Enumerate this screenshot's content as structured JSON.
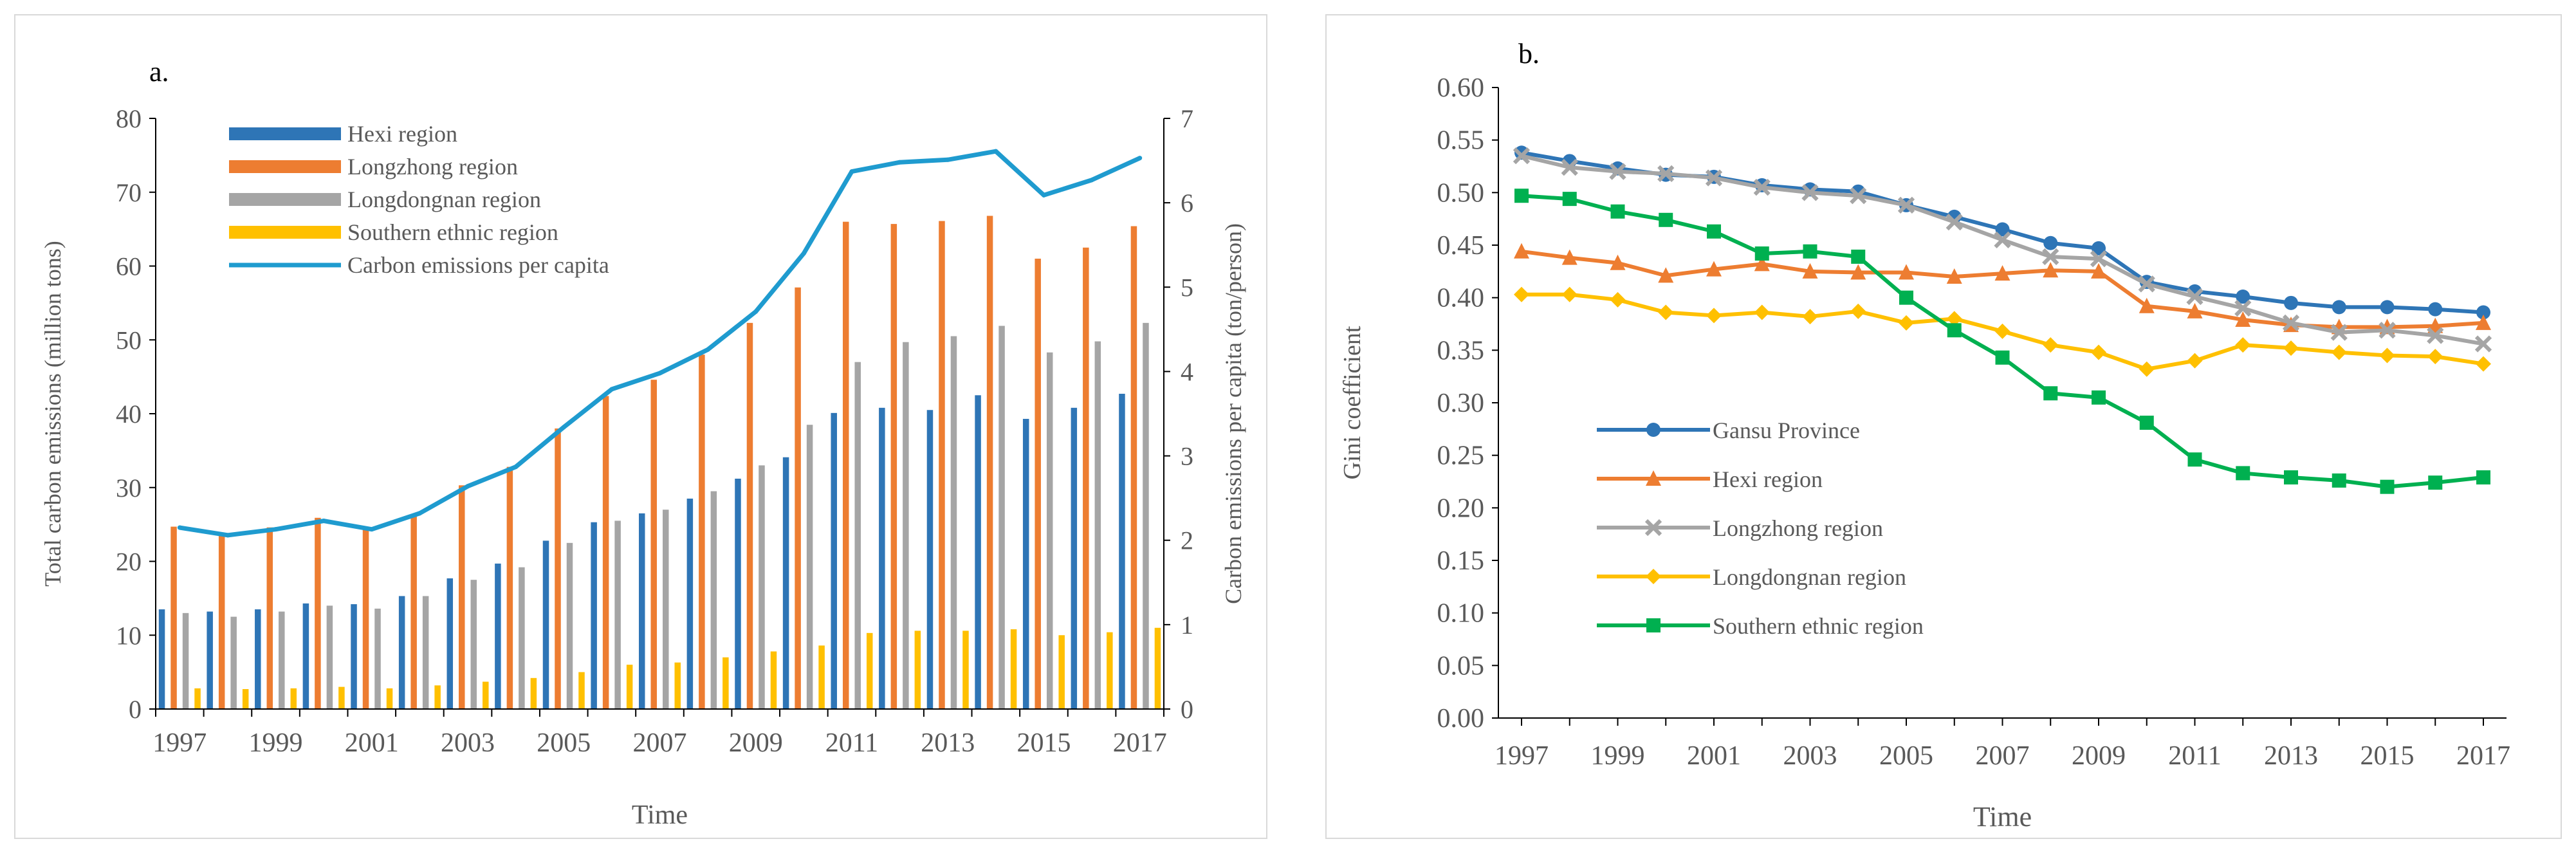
{
  "chart_data": [
    {
      "type": "bar+line",
      "panel_label": "a.",
      "xlabel": "Time",
      "ylabel_left": "Total carbon emissions (million tons)",
      "ylabel_right": "Carbon emissions per capita (ton/person)",
      "ylim_left": [
        0,
        80
      ],
      "ylim_right": [
        0,
        7
      ],
      "left_ticks": [
        "0",
        "10",
        "20",
        "30",
        "40",
        "50",
        "60",
        "70",
        "80"
      ],
      "right_ticks": [
        "0",
        "1",
        "2",
        "3",
        "4",
        "5",
        "6",
        "7"
      ],
      "years": [
        1997,
        1998,
        1999,
        2000,
        2001,
        2002,
        2003,
        2004,
        2005,
        2006,
        2007,
        2008,
        2009,
        2010,
        2011,
        2012,
        2013,
        2014,
        2015,
        2016,
        2017
      ],
      "x_tick_labels": [
        "1997",
        "1999",
        "2001",
        "2003",
        "2005",
        "2007",
        "2009",
        "2011",
        "2013",
        "2015",
        "2017"
      ],
      "legend_position": "top-left",
      "series": [
        {
          "name": "Hexi region",
          "kind": "bar",
          "axis": "left",
          "color": "#2E75B6",
          "values": [
            13.5,
            13.2,
            13.5,
            14.3,
            14.2,
            15.3,
            17.7,
            19.7,
            22.8,
            25.3,
            26.5,
            28.5,
            31.2,
            34.1,
            40.1,
            40.8,
            40.5,
            42.5,
            39.3,
            40.8,
            42.7
          ]
        },
        {
          "name": "Longzhong region",
          "kind": "bar",
          "axis": "left",
          "color": "#ED7D31",
          "values": [
            24.7,
            23.7,
            24.6,
            25.9,
            24.6,
            26.2,
            30.3,
            32.8,
            38.0,
            42.4,
            44.6,
            48.0,
            52.3,
            57.1,
            66.0,
            65.7,
            66.1,
            66.8,
            61.0,
            62.5,
            65.4
          ]
        },
        {
          "name": "Longdongnan region",
          "kind": "bar",
          "axis": "left",
          "color": "#A5A5A5",
          "values": [
            13.0,
            12.5,
            13.2,
            14.0,
            13.6,
            15.3,
            17.5,
            19.2,
            22.5,
            25.5,
            27.0,
            29.5,
            33.0,
            38.5,
            47.0,
            49.7,
            50.5,
            51.9,
            48.3,
            49.8,
            52.3
          ]
        },
        {
          "name": " Southern ethnic region",
          "kind": "bar",
          "axis": "left",
          "color": "#FFC000",
          "values": [
            2.8,
            2.7,
            2.8,
            3.0,
            2.8,
            3.2,
            3.7,
            4.2,
            5.0,
            6.0,
            6.3,
            7.0,
            7.8,
            8.6,
            10.3,
            10.6,
            10.6,
            10.8,
            10.0,
            10.4,
            11.0
          ]
        },
        {
          "name": "Carbon emissions per capita",
          "kind": "line",
          "axis": "right",
          "color": "#1F9BCF",
          "values": [
            2.15,
            2.06,
            2.13,
            2.23,
            2.13,
            2.32,
            2.64,
            2.87,
            3.34,
            3.79,
            3.98,
            4.26,
            4.71,
            5.4,
            6.37,
            6.48,
            6.51,
            6.61,
            6.09,
            6.27,
            6.53
          ]
        }
      ]
    },
    {
      "type": "line",
      "panel_label": "b.",
      "xlabel": "Time",
      "ylabel": "Gini coefficient",
      "ylim": [
        0,
        0.6
      ],
      "y_ticks": [
        "0.00",
        "0.05",
        "0.10",
        "0.15",
        "0.20",
        "0.25",
        "0.30",
        "0.35",
        "0.40",
        "0.45",
        "0.50",
        "0.55",
        "0.60"
      ],
      "years": [
        1997,
        1998,
        1999,
        2000,
        2001,
        2002,
        2003,
        2004,
        2005,
        2006,
        2007,
        2008,
        2009,
        2010,
        2011,
        2012,
        2013,
        2014,
        2015,
        2016,
        2017
      ],
      "x_tick_labels": [
        "1997",
        "1999",
        "2001",
        "2003",
        "2005",
        "2007",
        "2009",
        "2011",
        "2013",
        "2015",
        "2017"
      ],
      "legend_position": "middle-left",
      "series": [
        {
          "name": "Gansu Province",
          "marker": "circle",
          "color": "#2E75B6",
          "values": [
            0.538,
            0.53,
            0.523,
            0.517,
            0.515,
            0.507,
            0.503,
            0.501,
            0.488,
            0.477,
            0.465,
            0.452,
            0.447,
            0.415,
            0.406,
            0.401,
            0.395,
            0.391,
            0.391,
            0.389,
            0.386
          ]
        },
        {
          "name": "Hexi region",
          "marker": "triangle",
          "color": "#ED7D31",
          "values": [
            0.444,
            0.438,
            0.433,
            0.421,
            0.427,
            0.432,
            0.425,
            0.424,
            0.424,
            0.42,
            0.423,
            0.426,
            0.425,
            0.392,
            0.387,
            0.379,
            0.374,
            0.372,
            0.372,
            0.373,
            0.376
          ]
        },
        {
          "name": "Longzhong region",
          "marker": "x",
          "color": "#A5A5A5",
          "values": [
            0.535,
            0.524,
            0.52,
            0.518,
            0.514,
            0.505,
            0.5,
            0.497,
            0.488,
            0.472,
            0.455,
            0.439,
            0.437,
            0.413,
            0.401,
            0.39,
            0.376,
            0.367,
            0.369,
            0.364,
            0.356
          ]
        },
        {
          "name": "Longdongnan region",
          "marker": "diamond",
          "color": "#FFC000",
          "values": [
            0.403,
            0.403,
            0.398,
            0.386,
            0.383,
            0.386,
            0.382,
            0.387,
            0.376,
            0.38,
            0.368,
            0.355,
            0.348,
            0.332,
            0.34,
            0.355,
            0.352,
            0.348,
            0.345,
            0.344,
            0.337
          ]
        },
        {
          "name": " Southern ethnic region",
          "marker": "square",
          "color": "#00B050",
          "values": [
            0.497,
            0.494,
            0.482,
            0.474,
            0.463,
            0.442,
            0.444,
            0.439,
            0.4,
            0.369,
            0.343,
            0.309,
            0.305,
            0.281,
            0.246,
            0.233,
            0.229,
            0.226,
            0.22,
            0.224,
            0.229
          ]
        }
      ]
    }
  ]
}
